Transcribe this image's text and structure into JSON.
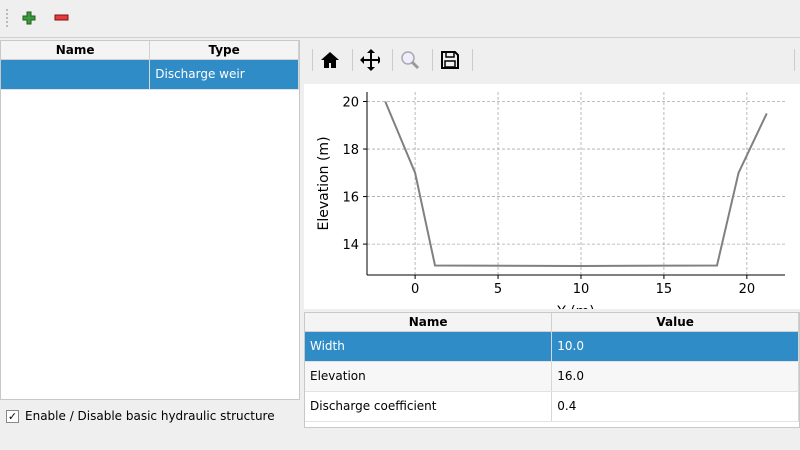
{
  "toolbar": {
    "add_icon": "plus-icon",
    "remove_icon": "minus-icon"
  },
  "structures_table": {
    "headers": [
      "Name",
      "Type"
    ],
    "rows": [
      {
        "name": "",
        "type": "Discharge weir",
        "selected": true
      }
    ]
  },
  "enable_checkbox": {
    "label": "Enable / Disable basic hydraulic structure",
    "checked": true,
    "mark": "✓"
  },
  "plot_toolbar": {
    "icons": [
      "home-icon",
      "pan-icon",
      "zoom-icon",
      "save-icon"
    ]
  },
  "chart_data": {
    "type": "line",
    "xlabel": "Y (m)",
    "ylabel": "Elevation (m)",
    "xlim": [
      -2.9,
      22.3
    ],
    "ylim": [
      12.7,
      20.4
    ],
    "xticks": [
      0,
      5,
      10,
      15,
      20
    ],
    "yticks": [
      14,
      16,
      18,
      20
    ],
    "grid": true,
    "line_color": "#808080",
    "series": [
      {
        "x": [
          -1.8,
          0,
          1.2,
          10,
          18.2,
          19.5,
          21.2
        ],
        "y": [
          20,
          17,
          13.1,
          13.08,
          13.1,
          17,
          19.5
        ]
      }
    ]
  },
  "properties_table": {
    "headers": [
      "Name",
      "Value"
    ],
    "rows": [
      {
        "name": "Width",
        "value": "10.0",
        "selected": true
      },
      {
        "name": "Elevation",
        "value": "16.0",
        "selected": false
      },
      {
        "name": "Discharge coefficient",
        "value": "0.4",
        "selected": false
      }
    ]
  }
}
